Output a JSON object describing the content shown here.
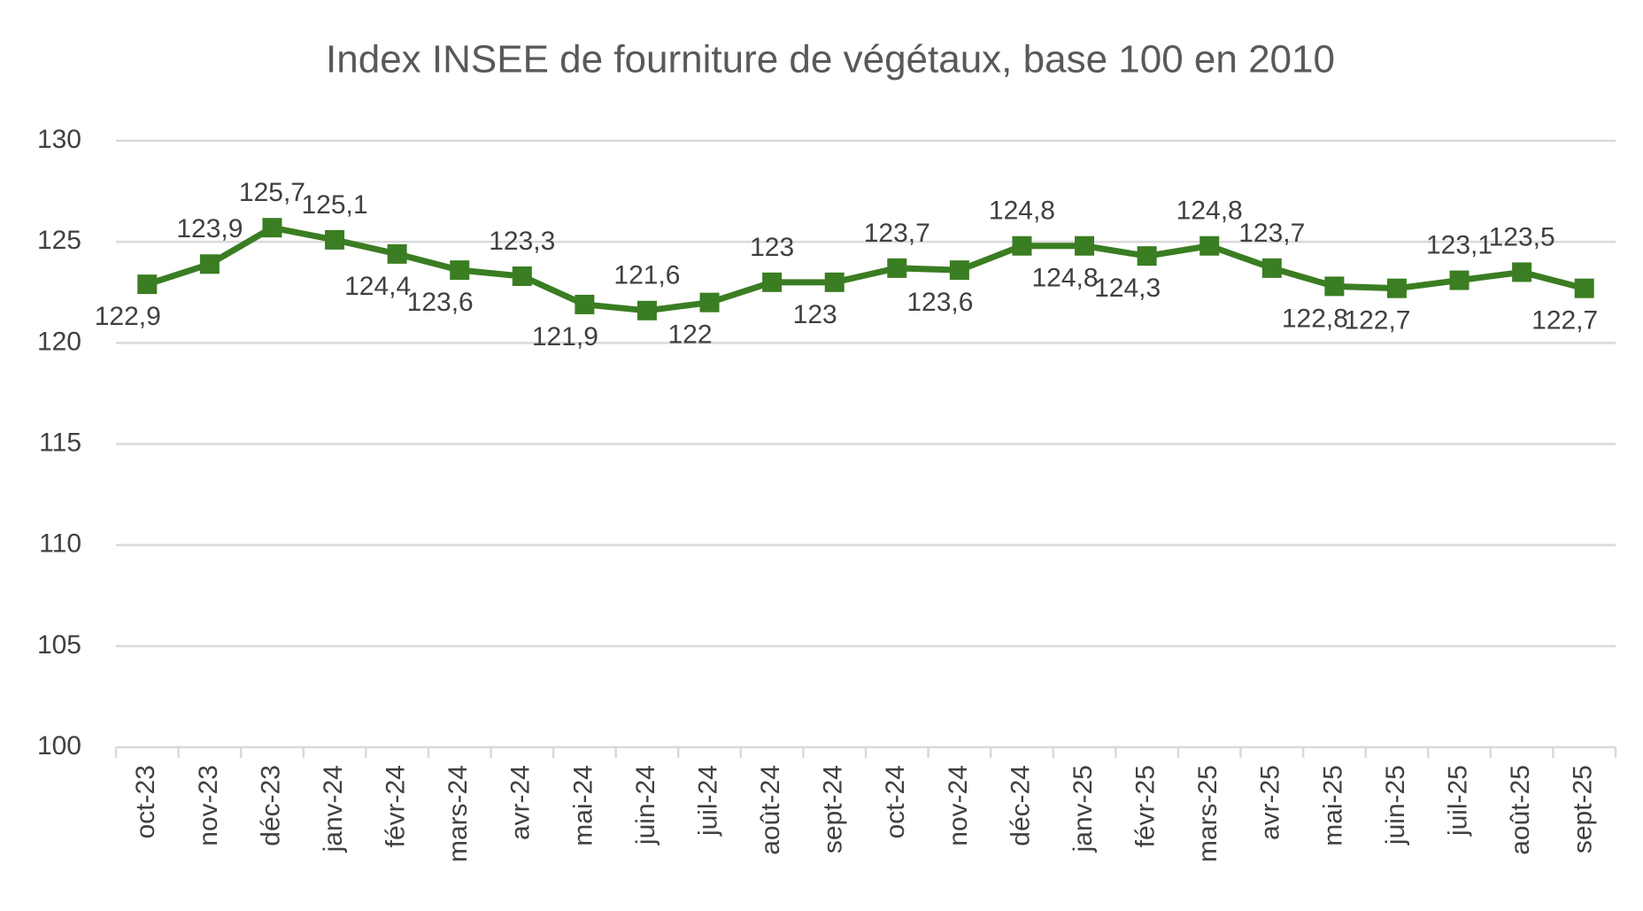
{
  "chart_data": {
    "type": "line",
    "title": "Index INSEE de fourniture de végétaux, base 100 en 2010",
    "categories": [
      "oct-23",
      "nov-23",
      "déc-23",
      "janv-24",
      "févr-24",
      "mars-24",
      "avr-24",
      "mai-24",
      "juin-24",
      "juil-24",
      "août-24",
      "sept-24",
      "oct-24",
      "nov-24",
      "déc-24",
      "janv-25",
      "févr-25",
      "mars-25",
      "avr-25",
      "mai-25",
      "juin-25",
      "juil-25",
      "août-25",
      "sept-25"
    ],
    "values": [
      122.9,
      123.9,
      125.7,
      125.1,
      124.4,
      123.6,
      123.3,
      121.9,
      121.6,
      122,
      123,
      123,
      123.7,
      123.6,
      124.8,
      124.8,
      124.3,
      124.8,
      123.7,
      122.8,
      122.7,
      123.1,
      123.5,
      122.7
    ],
    "value_labels": [
      "122,9",
      "123,9",
      "125,7",
      "125,1",
      "124,4",
      "123,6",
      "123,3",
      "121,9",
      "121,6",
      "122",
      "123",
      "123",
      "123,7",
      "123,6",
      "124,8",
      "124,8",
      "124,3",
      "124,8",
      "123,7",
      "122,8",
      "122,7",
      "123,1",
      "123,5",
      "122,7"
    ],
    "color": "#3a7d22",
    "ylim": [
      100,
      130
    ],
    "yticks": [
      100,
      105,
      110,
      115,
      120,
      125,
      130
    ],
    "grid": true
  }
}
